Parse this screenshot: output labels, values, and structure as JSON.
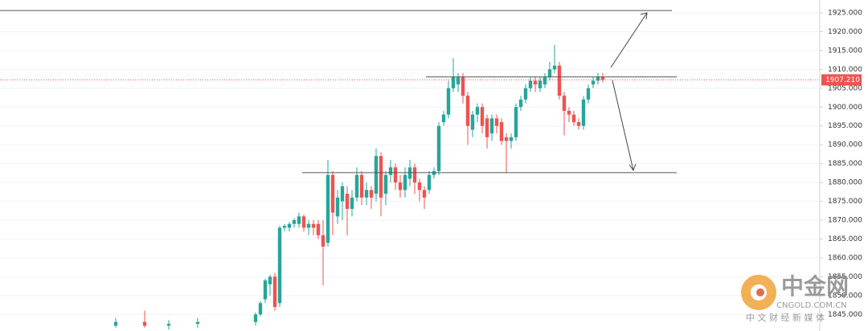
{
  "chart_data": {
    "type": "candlestick",
    "x": [
      0,
      6,
      11,
      17,
      29,
      30,
      31,
      32,
      33,
      34,
      35,
      36,
      37,
      38,
      39,
      40,
      41,
      42,
      43,
      44,
      45,
      46,
      47,
      48,
      49,
      50,
      51,
      52,
      53,
      54,
      55,
      56,
      57,
      58,
      59,
      60,
      61,
      62,
      63,
      64,
      65,
      66,
      67,
      68,
      69,
      70,
      71,
      72,
      73,
      74,
      75,
      76,
      77,
      78,
      79,
      80,
      81,
      82,
      83,
      84,
      85,
      86,
      87,
      88,
      89,
      90,
      91,
      92,
      93,
      94,
      95,
      96,
      97,
      98,
      99,
      100,
      101
    ],
    "open": [
      1842,
      1843,
      1842,
      1842.5,
      1843,
      1845,
      1849,
      1853,
      1855,
      1848,
      1868,
      1868,
      1869,
      1869,
      1871,
      1868,
      1869,
      1869,
      1866,
      1864,
      1882,
      1871,
      1875,
      1877,
      1873,
      1876,
      1882,
      1876,
      1878,
      1877,
      1887,
      1877,
      1882,
      1884,
      1880,
      1878,
      1881,
      1884,
      1880,
      1878,
      1878,
      1882,
      1883,
      1896,
      1898,
      1905,
      1906,
      1908,
      1903,
      1894,
      1898,
      1900,
      1897,
      1893,
      1897,
      1896,
      1892,
      1891,
      1892,
      1900,
      1902,
      1905,
      1907,
      1905,
      1906,
      1908,
      1910,
      1911,
      1903,
      1899,
      1898,
      1896,
      1895,
      1902,
      1906,
      1907,
      1908
    ],
    "high": [
      1844,
      1846,
      1843.5,
      1844,
      1845.5,
      1848.5,
      1854.5,
      1855.5,
      1856,
      1868.5,
      1869,
      1869.5,
      1870.5,
      1872,
      1871.5,
      1870,
      1870,
      1870,
      1870,
      1886,
      1883,
      1878,
      1880,
      1879,
      1878,
      1884,
      1883,
      1880,
      1879,
      1889,
      1888,
      1883,
      1886,
      1885,
      1882,
      1884,
      1886,
      1885,
      1881,
      1879,
      1883,
      1884,
      1896,
      1899,
      1907,
      1913,
      1909,
      1909,
      1904,
      1899,
      1901,
      1901,
      1898,
      1898,
      1898,
      1897,
      1893,
      1893,
      1901,
      1903,
      1906,
      1908,
      1908,
      1908,
      1909,
      1912,
      1916.5,
      1912,
      1904,
      1900,
      1899,
      1897,
      1903,
      1906,
      1908,
      1909,
      1909
    ],
    "low": [
      1841.5,
      1841.5,
      1841,
      1841.5,
      1842,
      1844.5,
      1848,
      1850,
      1846,
      1847,
      1867,
      1867,
      1868,
      1868,
      1867,
      1866,
      1866,
      1865,
      1852.7,
      1863,
      1866,
      1869,
      1870,
      1866,
      1871,
      1875,
      1874,
      1874,
      1873,
      1875,
      1871,
      1874,
      1880,
      1878,
      1876,
      1876,
      1879,
      1877,
      1875,
      1873,
      1877,
      1881,
      1882,
      1895,
      1897,
      1904,
      1904,
      1901,
      1890,
      1892,
      1896,
      1893,
      1889,
      1891,
      1893,
      1890,
      1882.5,
      1889,
      1891,
      1899,
      1901,
      1904,
      1904,
      1904,
      1905,
      1907,
      1909,
      1902,
      1892.5,
      1896,
      1895,
      1894,
      1894,
      1901,
      1905,
      1906,
      1906.5
    ],
    "close": [
      1843,
      1842,
      1842.5,
      1843,
      1845,
      1848,
      1854,
      1855,
      1847,
      1868,
      1868.5,
      1869,
      1870,
      1871,
      1868,
      1869,
      1868,
      1866,
      1863,
      1882,
      1872,
      1876,
      1879,
      1873,
      1876,
      1882,
      1876,
      1878,
      1876,
      1887,
      1876,
      1882,
      1884,
      1880,
      1878,
      1882,
      1884,
      1880,
      1878,
      1876,
      1882,
      1883,
      1895,
      1898,
      1905,
      1908,
      1908,
      1903,
      1895,
      1898,
      1900,
      1895,
      1892,
      1897,
      1895,
      1891,
      1891,
      1892,
      1900,
      1902,
      1905,
      1907,
      1906,
      1907,
      1908,
      1910,
      1911,
      1903,
      1899,
      1898,
      1896,
      1895,
      1902,
      1905,
      1907,
      1908,
      1907.21
    ],
    "up_color": "#26a69a",
    "down_color": "#ef5350",
    "xlim": [
      -24,
      146
    ],
    "ylim": [
      1840.6,
      1928.4
    ],
    "yticks": [
      {
        "value": 1845,
        "label": "1845.000"
      },
      {
        "value": 1850,
        "label": "1850.000"
      },
      {
        "value": 1855,
        "label": "1855.000"
      },
      {
        "value": 1860,
        "label": "1860.000"
      },
      {
        "value": 1865,
        "label": "1865.000"
      },
      {
        "value": 1870,
        "label": "1870.000"
      },
      {
        "value": 1875,
        "label": "1875.000"
      },
      {
        "value": 1880,
        "label": "1880.000"
      },
      {
        "value": 1885,
        "label": "1885.000"
      },
      {
        "value": 1890,
        "label": "1890.000"
      },
      {
        "value": 1895,
        "label": "1895.000"
      },
      {
        "value": 1900,
        "label": "1900.000"
      },
      {
        "value": 1905,
        "label": "1905.000"
      },
      {
        "value": 1910,
        "label": "1910.000"
      },
      {
        "value": 1915,
        "label": "1915.000"
      },
      {
        "value": 1920,
        "label": "1920.000"
      },
      {
        "value": 1925,
        "label": "1925.000"
      }
    ],
    "grid": true,
    "levels": [
      1925.6,
      1908,
      1882.6
    ],
    "current_price": {
      "value": 1907.21,
      "label": "1907.210"
    }
  },
  "watermark": {
    "name": "中金网",
    "site": "CNGOLD.COM.CN",
    "tagline": "中 文 财 经 新 媒 体"
  }
}
